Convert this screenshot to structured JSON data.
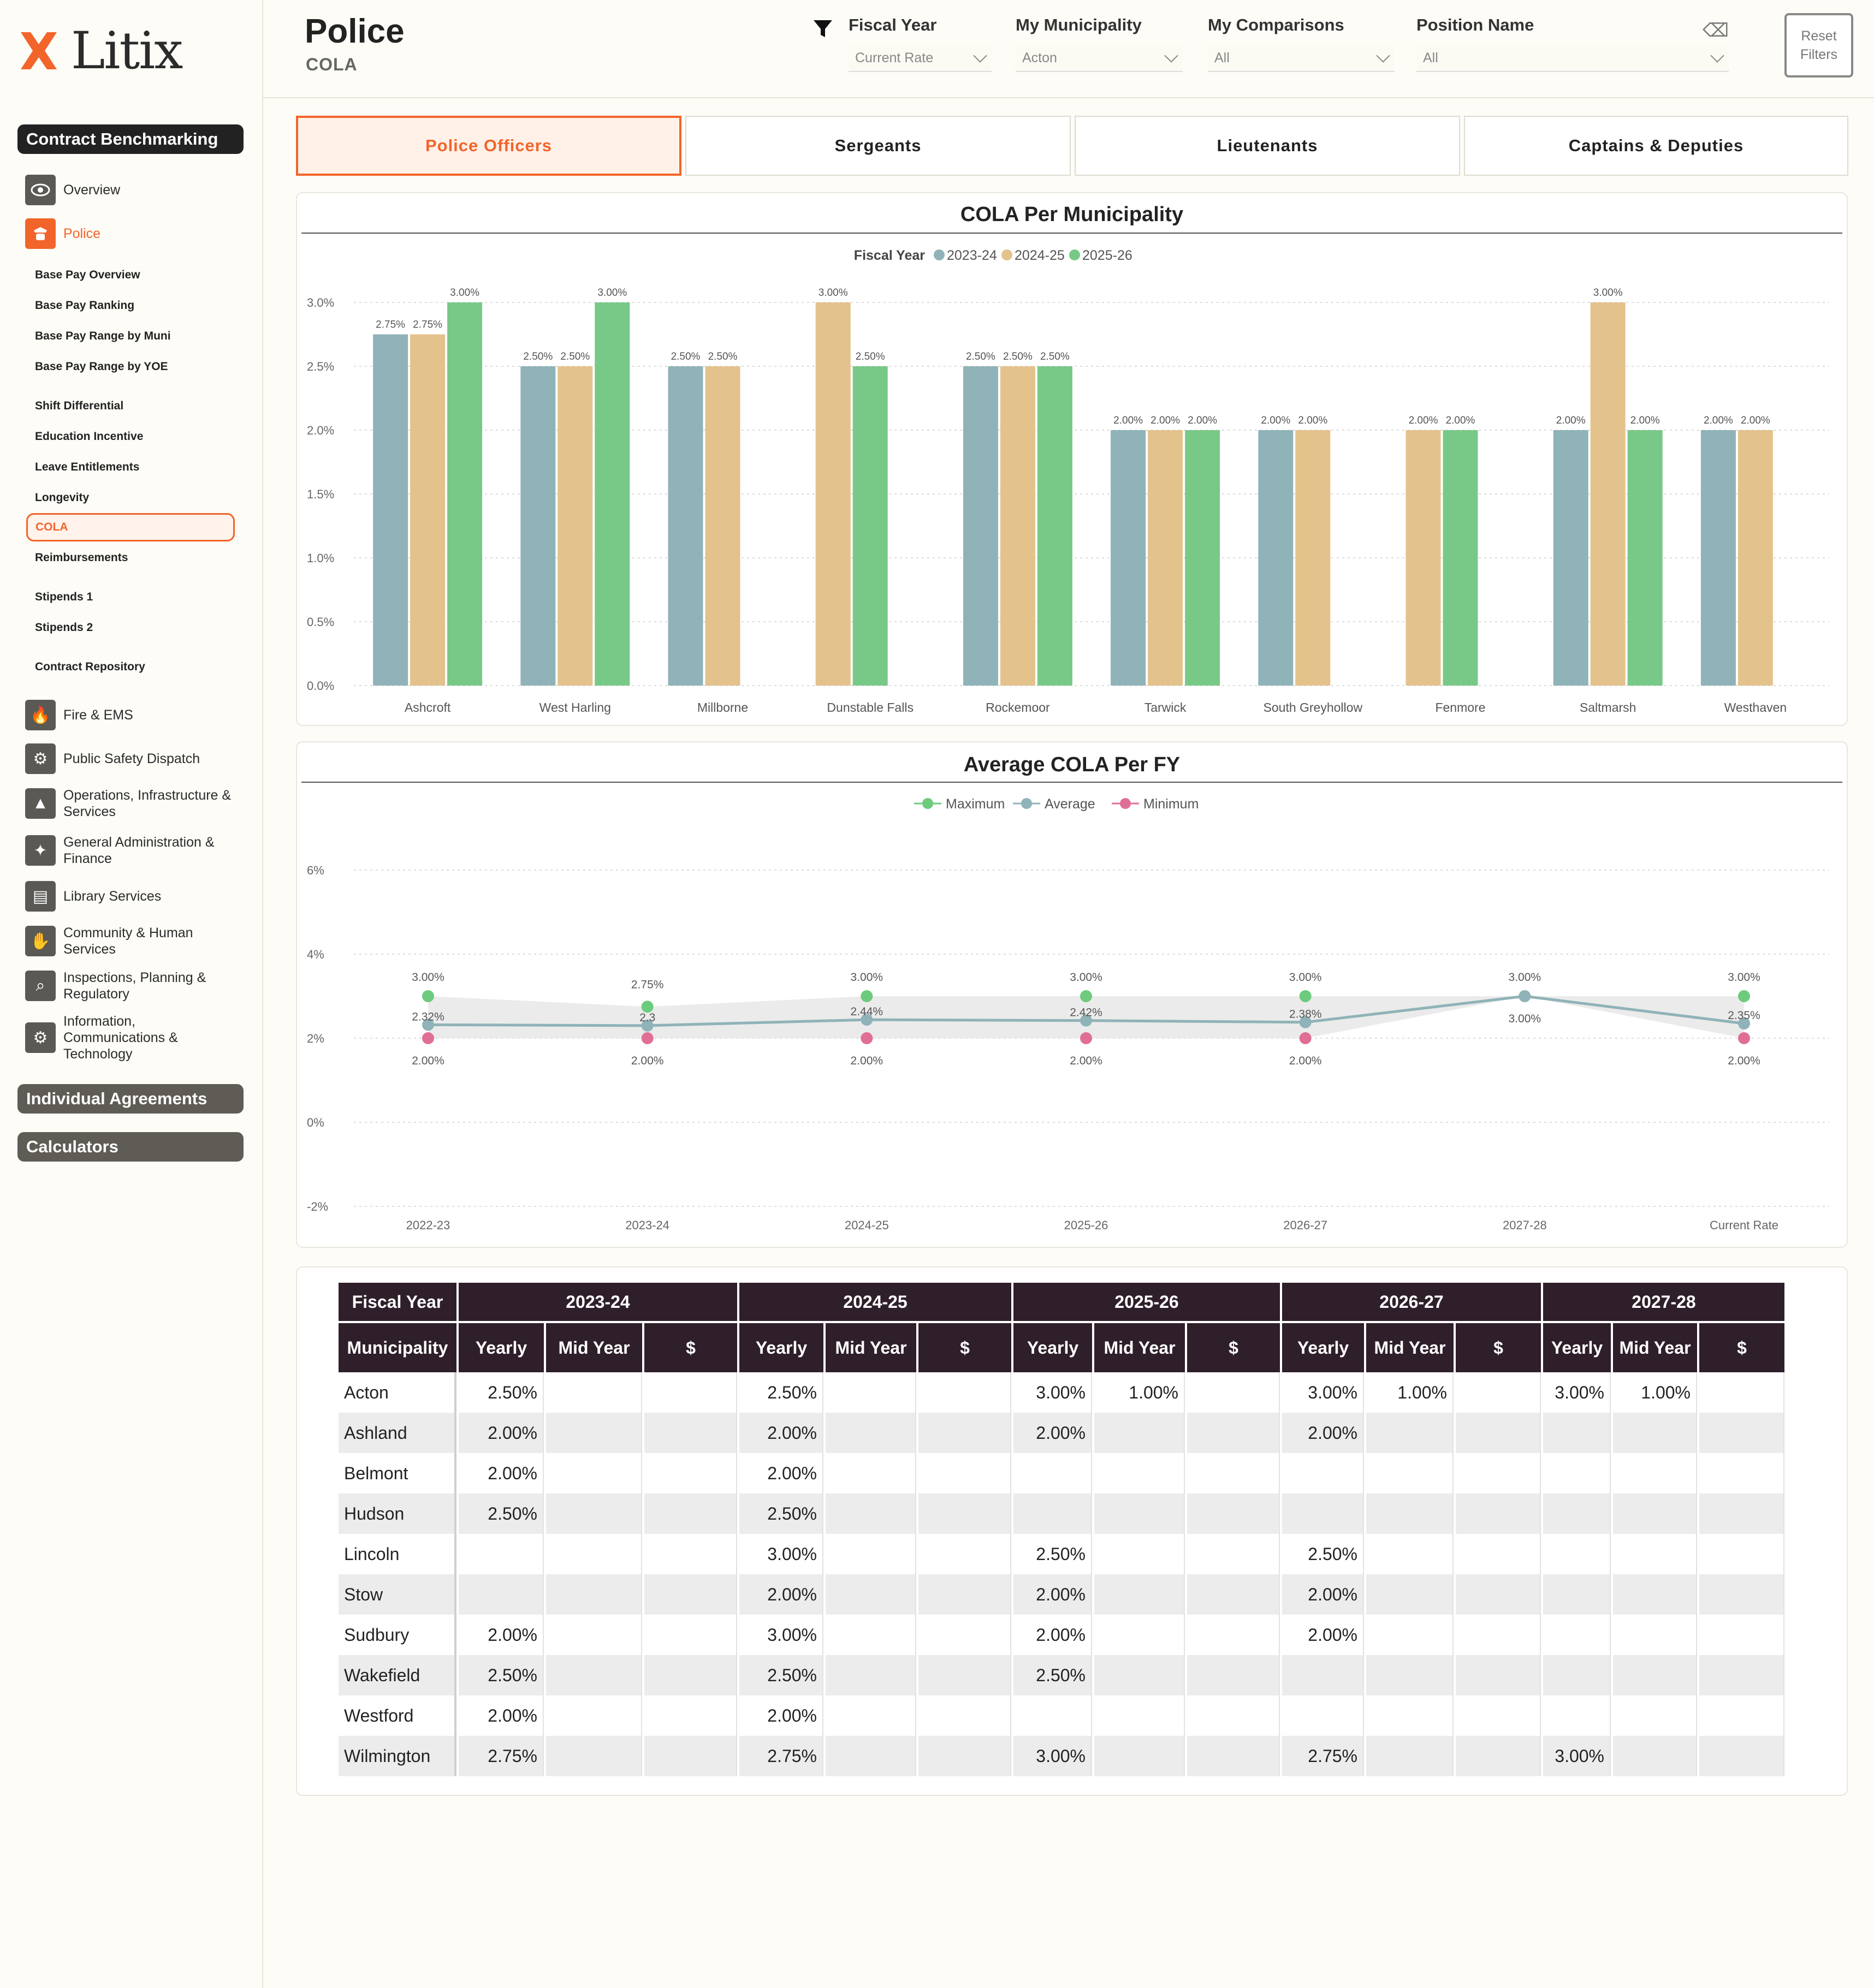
{
  "app": {
    "brand": "Litix"
  },
  "sidebar": {
    "sections": [
      "Contract Benchmarking",
      "Individual Agreements",
      "Calculators"
    ],
    "overview": "Overview",
    "police": "Police",
    "police_sub": [
      "Base Pay Overview",
      "Base Pay Ranking",
      "Base Pay Range by Muni",
      "Base Pay Range by YOE",
      "Shift Differential",
      "Education Incentive",
      "Leave Entitlements",
      "Longevity",
      "COLA",
      "Reimbursements",
      "Stipends 1",
      "Stipends 2",
      "Contract Repository"
    ],
    "departments": [
      {
        "label": "Fire & EMS",
        "icon": "flame-icon"
      },
      {
        "label": "Public Safety Dispatch",
        "icon": "dispatch-truck-icon"
      },
      {
        "label": "Operations, Infrastructure & Services",
        "icon": "traffic-cone-icon"
      },
      {
        "label": "General Administration & Finance",
        "icon": "admin-badge-icon"
      },
      {
        "label": "Library Services",
        "icon": "book-icon"
      },
      {
        "label": "Community & Human Services",
        "icon": "helping-hand-icon"
      },
      {
        "label": "Inspections, Planning & Regulatory",
        "icon": "inspection-icon"
      },
      {
        "label": "Information, Communications & Technology",
        "icon": "tech-gear-icon"
      }
    ]
  },
  "header": {
    "title": "Police",
    "subtitle": "COLA",
    "filters": [
      {
        "label": "Fiscal Year",
        "value": "Current Rate"
      },
      {
        "label": "My Municipality",
        "value": "Acton"
      },
      {
        "label": "My Comparisons",
        "value": "All"
      },
      {
        "label": "Position Name",
        "value": "All"
      }
    ],
    "reset": "Reset\nFilters"
  },
  "tabs": [
    "Police Officers",
    "Sergeants",
    "Lieutenants",
    "Captains & Deputies"
  ],
  "colors": {
    "accent": "#f2642a",
    "fy2324": "#8fb3b8",
    "fy2425": "#e3c28c",
    "fy2526": "#78c987",
    "avg": "#8fb3b8",
    "max": "#6ccb7c",
    "min": "#e06f97"
  },
  "chart_data": [
    {
      "type": "bar",
      "title": "COLA Per Municipality",
      "legend_title": "Fiscal Year",
      "categories": [
        "Ashcroft",
        "West Harling",
        "Millborne",
        "Dunstable Falls",
        "Rockemoor",
        "Tarwick",
        "South Greyhollow",
        "Fenmore",
        "Saltmarsh",
        "Westhaven"
      ],
      "series": [
        {
          "name": "2023-24",
          "values": [
            2.75,
            2.5,
            2.5,
            null,
            2.5,
            2.0,
            2.0,
            null,
            2.0,
            2.0
          ]
        },
        {
          "name": "2024-25",
          "values": [
            2.75,
            2.5,
            2.5,
            3.0,
            2.5,
            2.0,
            2.0,
            2.0,
            3.0,
            2.0
          ]
        },
        {
          "name": "2025-26",
          "values": [
            3.0,
            3.0,
            null,
            2.5,
            2.5,
            2.0,
            null,
            2.0,
            2.0,
            null
          ]
        }
      ],
      "yticks": [
        "0.0%",
        "0.5%",
        "1.0%",
        "1.5%",
        "2.0%",
        "2.5%",
        "3.0%"
      ],
      "ylim": [
        0,
        3.0
      ],
      "grid": true
    },
    {
      "type": "line",
      "title": "Average COLA Per FY",
      "x": [
        "2022-23",
        "2023-24",
        "2024-25",
        "2025-26",
        "2026-27",
        "2027-28",
        "Current Rate"
      ],
      "series": [
        {
          "name": "Maximum",
          "values": [
            3.0,
            2.75,
            3.0,
            3.0,
            3.0,
            3.0,
            3.0
          ],
          "labels": [
            "3.00%",
            "2.75%",
            "3.00%",
            "3.00%",
            "3.00%",
            "3.00%",
            "3.00%"
          ]
        },
        {
          "name": "Average",
          "values": [
            2.32,
            2.3,
            2.44,
            2.42,
            2.38,
            3.0,
            2.35
          ],
          "labels": [
            "2.32%",
            "2.3",
            "2.44%",
            "2.42%",
            "2.38%",
            "3.00%",
            "2.35%"
          ]
        },
        {
          "name": "Minimum",
          "values": [
            2.0,
            2.0,
            2.0,
            2.0,
            2.0,
            null,
            2.0
          ],
          "labels": [
            "2.00%",
            "2.00%",
            "2.00%",
            "2.00%",
            "2.00%",
            "",
            "2.00%"
          ]
        }
      ],
      "yticks": [
        "-2%",
        "0%",
        "2%",
        "4%",
        "6%"
      ],
      "ylim": [
        -2,
        6
      ],
      "grid": true
    }
  ],
  "table": {
    "corner": "Fiscal Year",
    "years": [
      "2023-24",
      "2024-25",
      "2025-26",
      "2026-27",
      "2027-28"
    ],
    "sub_headers": [
      "Municipality",
      "Yearly",
      "Mid Year",
      "$"
    ],
    "rows": [
      {
        "muni": "Acton",
        "cells": [
          "2.50%",
          "",
          "",
          "2.50%",
          "",
          "",
          "3.00%",
          "1.00%",
          "",
          "3.00%",
          "1.00%",
          "",
          "3.00%",
          "1.00%",
          ""
        ]
      },
      {
        "muni": "Ashland",
        "cells": [
          "2.00%",
          "",
          "",
          "2.00%",
          "",
          "",
          "2.00%",
          "",
          "",
          "2.00%",
          "",
          "",
          "",
          "",
          ""
        ]
      },
      {
        "muni": "Belmont",
        "cells": [
          "2.00%",
          "",
          "",
          "2.00%",
          "",
          "",
          "",
          "",
          "",
          "",
          "",
          "",
          "",
          "",
          ""
        ]
      },
      {
        "muni": "Hudson",
        "cells": [
          "2.50%",
          "",
          "",
          "2.50%",
          "",
          "",
          "",
          "",
          "",
          "",
          "",
          "",
          "",
          "",
          ""
        ]
      },
      {
        "muni": "Lincoln",
        "cells": [
          "",
          "",
          "",
          "3.00%",
          "",
          "",
          "2.50%",
          "",
          "",
          "2.50%",
          "",
          "",
          "",
          "",
          ""
        ]
      },
      {
        "muni": "Stow",
        "cells": [
          "",
          "",
          "",
          "2.00%",
          "",
          "",
          "2.00%",
          "",
          "",
          "2.00%",
          "",
          "",
          "",
          "",
          ""
        ]
      },
      {
        "muni": "Sudbury",
        "cells": [
          "2.00%",
          "",
          "",
          "3.00%",
          "",
          "",
          "2.00%",
          "",
          "",
          "2.00%",
          "",
          "",
          "",
          "",
          ""
        ]
      },
      {
        "muni": "Wakefield",
        "cells": [
          "2.50%",
          "",
          "",
          "2.50%",
          "",
          "",
          "2.50%",
          "",
          "",
          "",
          "",
          "",
          "",
          "",
          ""
        ]
      },
      {
        "muni": "Westford",
        "cells": [
          "2.00%",
          "",
          "",
          "2.00%",
          "",
          "",
          "",
          "",
          "",
          "",
          "",
          "",
          "",
          "",
          ""
        ]
      },
      {
        "muni": "Wilmington",
        "cells": [
          "2.75%",
          "",
          "",
          "2.75%",
          "",
          "",
          "3.00%",
          "",
          "",
          "2.75%",
          "",
          "",
          "3.00%",
          "",
          ""
        ]
      }
    ]
  }
}
